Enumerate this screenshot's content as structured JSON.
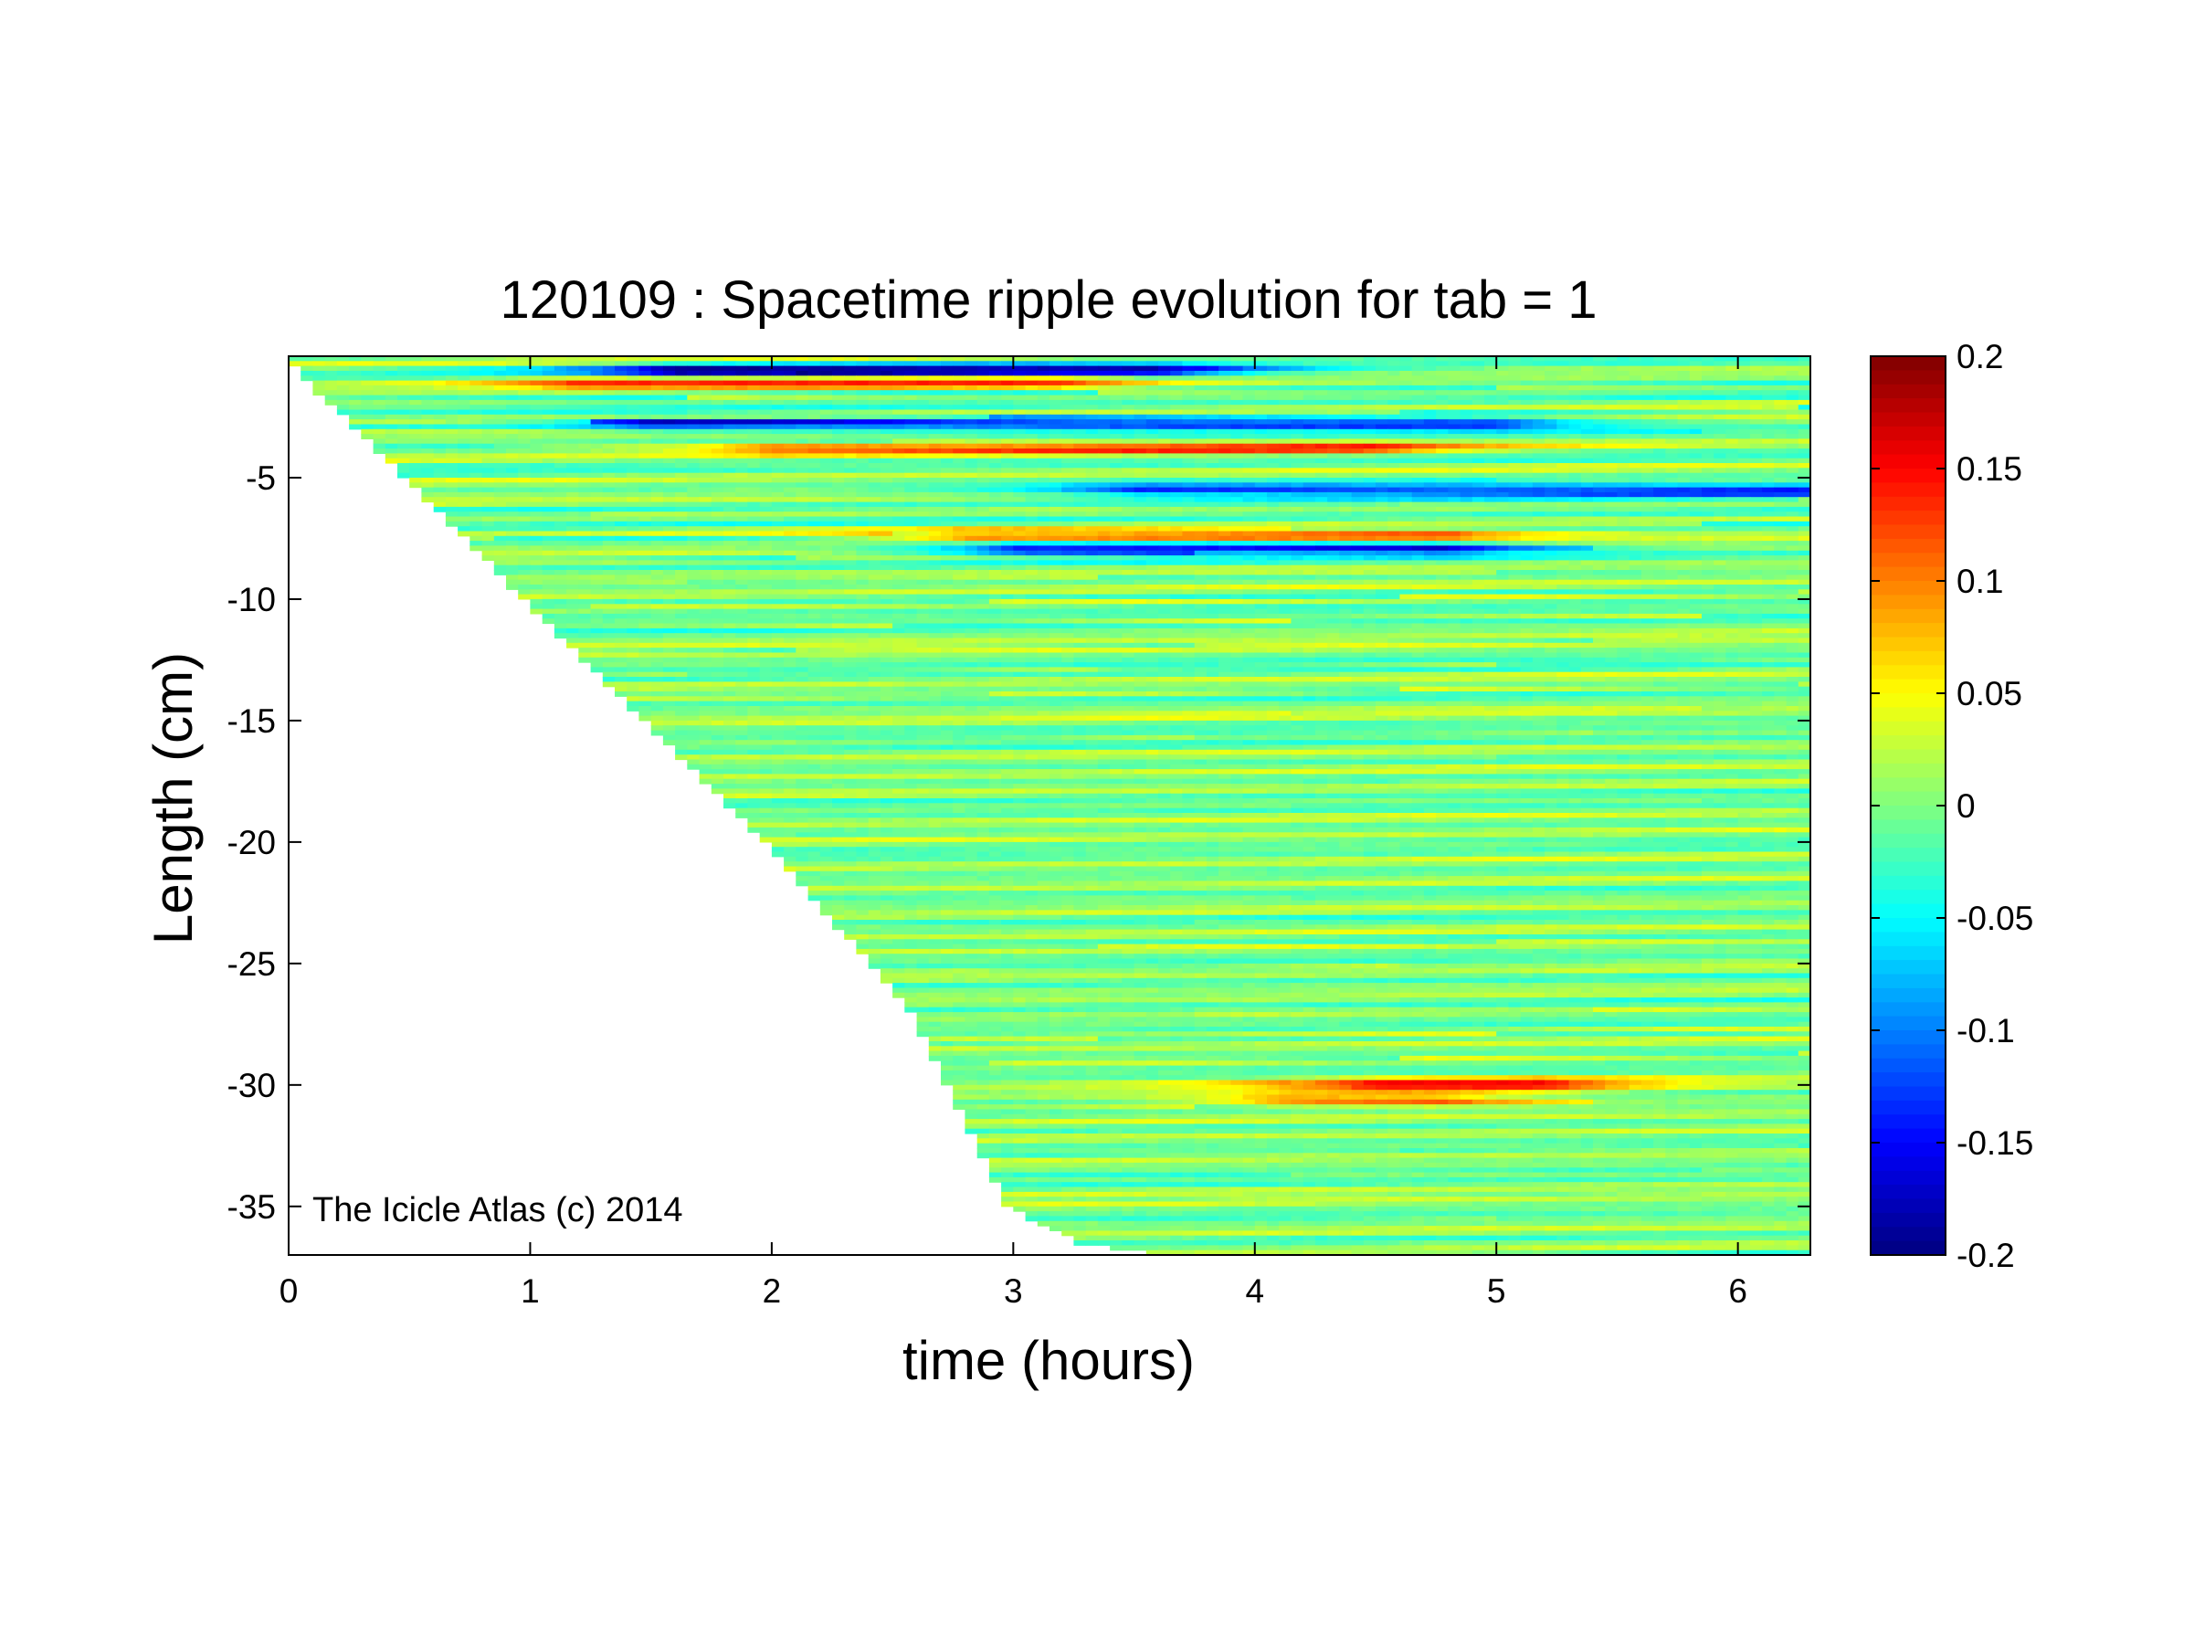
{
  "chart_data": {
    "type": "heatmap",
    "title": "120109 : Spacetime ripple evolution for tab = 1",
    "xlabel": "time (hours)",
    "ylabel": "Length (cm)",
    "xlim": [
      0,
      6.3
    ],
    "ylim": [
      -37,
      0
    ],
    "xticks": [
      0,
      1,
      2,
      3,
      4,
      5,
      6
    ],
    "xtick_labels": [
      "0",
      "1",
      "2",
      "3",
      "4",
      "5",
      "6"
    ],
    "yticks": [
      -5,
      -10,
      -15,
      -20,
      -25,
      -30,
      -35
    ],
    "ytick_labels": [
      "-5",
      "-10",
      "-15",
      "-20",
      "-25",
      "-30",
      "-35"
    ],
    "colorbar": {
      "colormap": "jet",
      "clim": [
        -0.2,
        0.2
      ],
      "ticks": [
        0.2,
        0.15,
        0.1,
        0.05,
        0,
        -0.05,
        -0.1,
        -0.15,
        -0.2
      ],
      "tick_labels": [
        "0.2",
        "0.15",
        "0.1",
        "0.05",
        "0",
        "-0.05",
        "-0.1",
        "-0.15",
        "-0.2"
      ]
    },
    "grid": false,
    "annotation": "The Icicle Atlas (c) 2014",
    "growth_front": [
      [
        0,
        0
      ],
      [
        1.0,
        -10
      ],
      [
        2.0,
        -20
      ],
      [
        2.6,
        -27
      ],
      [
        2.85,
        -32
      ],
      [
        3.0,
        -35
      ],
      [
        3.3,
        -36.5
      ],
      [
        3.65,
        -37
      ]
    ],
    "ripple_wavelength_cm": 0.95,
    "strong_bands": [
      {
        "depth": -0.6,
        "amplitude": -0.19,
        "t_start": 1.6,
        "t_end": 3.6
      },
      {
        "depth": -1.1,
        "amplitude": 0.12,
        "t_start": 1.2,
        "t_end": 3.2
      },
      {
        "depth": -2.8,
        "amplitude": -0.15,
        "t_start": 1.5,
        "t_end": 5.0
      },
      {
        "depth": -3.8,
        "amplitude": 0.11,
        "t_start": 2.0,
        "t_end": 4.5
      },
      {
        "depth": -5.5,
        "amplitude": -0.15,
        "t_start": 3.5,
        "t_end": 6.3
      },
      {
        "depth": -7.4,
        "amplitude": 0.13,
        "t_start": 2.8,
        "t_end": 4.8
      },
      {
        "depth": -7.9,
        "amplitude": -0.17,
        "t_start": 3.0,
        "t_end": 4.8
      },
      {
        "depth": -30.0,
        "amplitude": 0.14,
        "t_start": 4.5,
        "t_end": 5.2
      },
      {
        "depth": -30.6,
        "amplitude": 0.12,
        "t_start": 4.1,
        "t_end": 4.8
      }
    ]
  }
}
